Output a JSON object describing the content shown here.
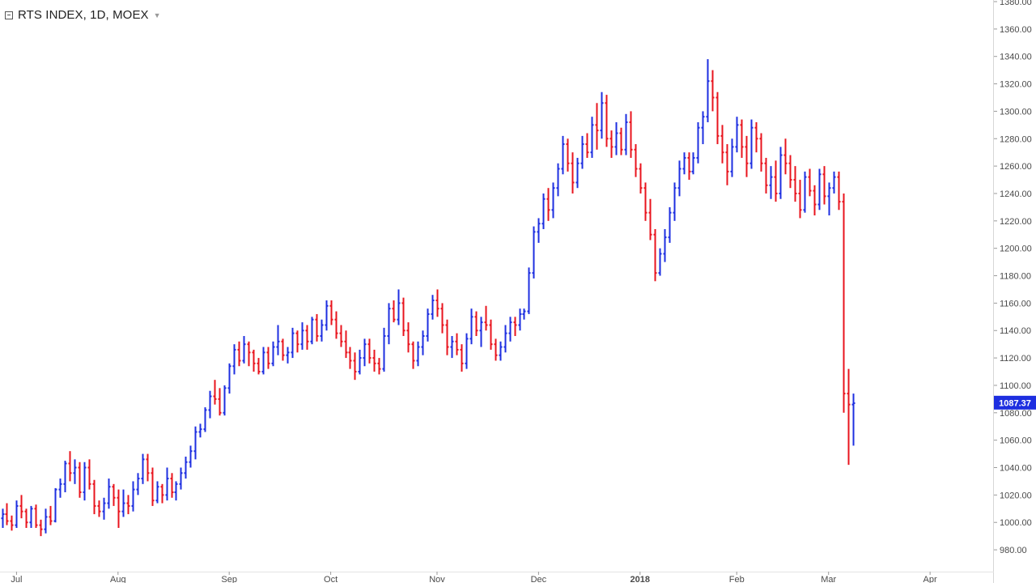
{
  "chart_data": {
    "type": "ohlc_bar",
    "title": "RTS INDEX, 1D, MOEX",
    "timeframe": "1D",
    "exchange": "MOEX",
    "last_price": "1087.37",
    "ylim": [
      970,
      1380
    ],
    "y_ticks": [
      "980.00",
      "1000.00",
      "1020.00",
      "1040.00",
      "1060.00",
      "1080.00",
      "1100.00",
      "1120.00",
      "1140.00",
      "1160.00",
      "1180.00",
      "1200.00",
      "1220.00",
      "1240.00",
      "1260.00",
      "1280.00",
      "1300.00",
      "1320.00",
      "1340.00",
      "1360.00",
      "1380.00"
    ],
    "x_ticks": [
      {
        "label": "Jul",
        "index": 3
      },
      {
        "label": "Aug",
        "index": 24
      },
      {
        "label": "Sep",
        "index": 47
      },
      {
        "label": "Oct",
        "index": 68
      },
      {
        "label": "Nov",
        "index": 90
      },
      {
        "label": "Dec",
        "index": 111
      },
      {
        "label": "2018",
        "index": 132
      },
      {
        "label": "Feb",
        "index": 152
      },
      {
        "label": "Mar",
        "index": 171
      },
      {
        "label": "Apr",
        "index": 192
      }
    ],
    "colors": {
      "up": "#1e2fe0",
      "down": "#e8141e",
      "axis": "#d6d6d6",
      "text": "#4a4a4a",
      "last_price_bg": "#1e2fe0"
    },
    "grid": false,
    "bars": [
      [
        1003,
        1010,
        996,
        1006
      ],
      [
        1006,
        1014,
        998,
        1001
      ],
      [
        1001,
        1005,
        994,
        998
      ],
      [
        998,
        1016,
        996,
        1012
      ],
      [
        1012,
        1020,
        1003,
        1008
      ],
      [
        1008,
        1010,
        996,
        1000
      ],
      [
        1000,
        1012,
        996,
        1010
      ],
      [
        1010,
        1013,
        996,
        998
      ],
      [
        998,
        1002,
        990,
        995
      ],
      [
        995,
        1010,
        992,
        1004
      ],
      [
        1004,
        1012,
        998,
        1001
      ],
      [
        1001,
        1025,
        1000,
        1024
      ],
      [
        1024,
        1032,
        1018,
        1028
      ],
      [
        1028,
        1045,
        1022,
        1043
      ],
      [
        1043,
        1052,
        1030,
        1036
      ],
      [
        1036,
        1046,
        1028,
        1040
      ],
      [
        1040,
        1044,
        1018,
        1022
      ],
      [
        1022,
        1044,
        1016,
        1040
      ],
      [
        1040,
        1046,
        1024,
        1028
      ],
      [
        1028,
        1031,
        1006,
        1012
      ],
      [
        1012,
        1016,
        1004,
        1008
      ],
      [
        1008,
        1018,
        1002,
        1014
      ],
      [
        1014,
        1032,
        1010,
        1026
      ],
      [
        1026,
        1028,
        1012,
        1018
      ],
      [
        1018,
        1024,
        996,
        1008
      ],
      [
        1008,
        1024,
        1004,
        1014
      ],
      [
        1014,
        1020,
        1006,
        1012
      ],
      [
        1012,
        1030,
        1008,
        1024
      ],
      [
        1024,
        1036,
        1020,
        1032
      ],
      [
        1032,
        1050,
        1028,
        1046
      ],
      [
        1046,
        1050,
        1030,
        1036
      ],
      [
        1036,
        1040,
        1012,
        1016
      ],
      [
        1016,
        1030,
        1014,
        1026
      ],
      [
        1026,
        1028,
        1014,
        1020
      ],
      [
        1020,
        1040,
        1016,
        1032
      ],
      [
        1032,
        1036,
        1018,
        1022
      ],
      [
        1022,
        1030,
        1016,
        1028
      ],
      [
        1028,
        1040,
        1024,
        1036
      ],
      [
        1036,
        1048,
        1032,
        1044
      ],
      [
        1044,
        1056,
        1040,
        1052
      ],
      [
        1052,
        1070,
        1046,
        1066
      ],
      [
        1066,
        1072,
        1062,
        1068
      ],
      [
        1068,
        1084,
        1066,
        1082
      ],
      [
        1082,
        1096,
        1076,
        1092
      ],
      [
        1092,
        1104,
        1086,
        1090
      ],
      [
        1090,
        1098,
        1078,
        1080
      ],
      [
        1080,
        1100,
        1078,
        1098
      ],
      [
        1098,
        1116,
        1094,
        1114
      ],
      [
        1114,
        1130,
        1108,
        1126
      ],
      [
        1126,
        1132,
        1114,
        1118
      ],
      [
        1118,
        1136,
        1116,
        1130
      ],
      [
        1130,
        1132,
        1114,
        1124
      ],
      [
        1124,
        1126,
        1110,
        1116
      ],
      [
        1116,
        1120,
        1108,
        1110
      ],
      [
        1110,
        1128,
        1108,
        1124
      ],
      [
        1124,
        1128,
        1112,
        1116
      ],
      [
        1116,
        1132,
        1114,
        1128
      ],
      [
        1128,
        1144,
        1122,
        1132
      ],
      [
        1132,
        1134,
        1118,
        1122
      ],
      [
        1122,
        1128,
        1116,
        1124
      ],
      [
        1124,
        1142,
        1120,
        1138
      ],
      [
        1138,
        1140,
        1124,
        1130
      ],
      [
        1130,
        1146,
        1126,
        1140
      ],
      [
        1140,
        1144,
        1126,
        1132
      ],
      [
        1132,
        1150,
        1130,
        1148
      ],
      [
        1148,
        1152,
        1132,
        1136
      ],
      [
        1136,
        1148,
        1132,
        1144
      ],
      [
        1144,
        1162,
        1140,
        1158
      ],
      [
        1158,
        1162,
        1144,
        1148
      ],
      [
        1148,
        1154,
        1134,
        1138
      ],
      [
        1138,
        1144,
        1128,
        1132
      ],
      [
        1132,
        1140,
        1120,
        1124
      ],
      [
        1124,
        1128,
        1112,
        1118
      ],
      [
        1118,
        1124,
        1104,
        1110
      ],
      [
        1110,
        1126,
        1108,
        1120
      ],
      [
        1120,
        1134,
        1114,
        1130
      ],
      [
        1130,
        1134,
        1116,
        1120
      ],
      [
        1120,
        1126,
        1110,
        1116
      ],
      [
        1116,
        1120,
        1108,
        1112
      ],
      [
        1112,
        1142,
        1110,
        1136
      ],
      [
        1136,
        1160,
        1130,
        1156
      ],
      [
        1156,
        1162,
        1146,
        1148
      ],
      [
        1148,
        1170,
        1144,
        1160
      ],
      [
        1160,
        1164,
        1136,
        1140
      ],
      [
        1140,
        1146,
        1124,
        1130
      ],
      [
        1130,
        1132,
        1112,
        1118
      ],
      [
        1118,
        1132,
        1114,
        1128
      ],
      [
        1128,
        1140,
        1122,
        1136
      ],
      [
        1136,
        1156,
        1132,
        1152
      ],
      [
        1152,
        1166,
        1148,
        1162
      ],
      [
        1162,
        1170,
        1150,
        1156
      ],
      [
        1156,
        1160,
        1138,
        1144
      ],
      [
        1144,
        1148,
        1122,
        1128
      ],
      [
        1128,
        1136,
        1120,
        1132
      ],
      [
        1132,
        1138,
        1122,
        1126
      ],
      [
        1126,
        1130,
        1110,
        1116
      ],
      [
        1116,
        1138,
        1112,
        1134
      ],
      [
        1134,
        1156,
        1130,
        1150
      ],
      [
        1150,
        1154,
        1136,
        1140
      ],
      [
        1140,
        1150,
        1128,
        1146
      ],
      [
        1146,
        1158,
        1140,
        1144
      ],
      [
        1144,
        1148,
        1126,
        1130
      ],
      [
        1130,
        1134,
        1118,
        1122
      ],
      [
        1122,
        1132,
        1118,
        1128
      ],
      [
        1128,
        1144,
        1124,
        1138
      ],
      [
        1138,
        1150,
        1132,
        1146
      ],
      [
        1146,
        1150,
        1136,
        1144
      ],
      [
        1144,
        1156,
        1140,
        1152
      ],
      [
        1152,
        1156,
        1148,
        1154
      ],
      [
        1154,
        1186,
        1152,
        1182
      ],
      [
        1182,
        1216,
        1178,
        1212
      ],
      [
        1212,
        1222,
        1204,
        1218
      ],
      [
        1218,
        1240,
        1214,
        1236
      ],
      [
        1236,
        1244,
        1220,
        1228
      ],
      [
        1228,
        1248,
        1222,
        1244
      ],
      [
        1244,
        1262,
        1238,
        1258
      ],
      [
        1258,
        1282,
        1254,
        1276
      ],
      [
        1276,
        1280,
        1256,
        1262
      ],
      [
        1262,
        1270,
        1240,
        1248
      ],
      [
        1248,
        1266,
        1244,
        1262
      ],
      [
        1262,
        1282,
        1258,
        1276
      ],
      [
        1276,
        1284,
        1266,
        1270
      ],
      [
        1270,
        1296,
        1266,
        1290
      ],
      [
        1290,
        1306,
        1272,
        1286
      ],
      [
        1286,
        1314,
        1280,
        1306
      ],
      [
        1306,
        1312,
        1274,
        1280
      ],
      [
        1280,
        1286,
        1266,
        1274
      ],
      [
        1274,
        1292,
        1268,
        1284
      ],
      [
        1284,
        1288,
        1268,
        1272
      ],
      [
        1272,
        1298,
        1268,
        1292
      ],
      [
        1292,
        1300,
        1266,
        1272
      ],
      [
        1272,
        1276,
        1252,
        1258
      ],
      [
        1258,
        1262,
        1240,
        1244
      ],
      [
        1244,
        1248,
        1220,
        1226
      ],
      [
        1226,
        1236,
        1206,
        1210
      ],
      [
        1210,
        1214,
        1176,
        1182
      ],
      [
        1182,
        1200,
        1180,
        1196
      ],
      [
        1196,
        1214,
        1190,
        1208
      ],
      [
        1208,
        1230,
        1204,
        1226
      ],
      [
        1226,
        1248,
        1220,
        1244
      ],
      [
        1244,
        1264,
        1238,
        1258
      ],
      [
        1258,
        1270,
        1254,
        1266
      ],
      [
        1266,
        1270,
        1250,
        1256
      ],
      [
        1256,
        1270,
        1254,
        1266
      ],
      [
        1266,
        1292,
        1262,
        1288
      ],
      [
        1288,
        1300,
        1276,
        1296
      ],
      [
        1296,
        1338,
        1292,
        1322
      ],
      [
        1322,
        1330,
        1300,
        1310
      ],
      [
        1310,
        1314,
        1276,
        1282
      ],
      [
        1282,
        1290,
        1262,
        1270
      ],
      [
        1270,
        1276,
        1246,
        1256
      ],
      [
        1256,
        1280,
        1252,
        1274
      ],
      [
        1274,
        1296,
        1270,
        1290
      ],
      [
        1290,
        1294,
        1266,
        1274
      ],
      [
        1274,
        1282,
        1252,
        1262
      ],
      [
        1262,
        1294,
        1258,
        1288
      ],
      [
        1288,
        1292,
        1270,
        1280
      ],
      [
        1280,
        1284,
        1256,
        1262
      ],
      [
        1262,
        1266,
        1240,
        1246
      ],
      [
        1246,
        1260,
        1236,
        1252
      ],
      [
        1252,
        1264,
        1234,
        1240
      ],
      [
        1240,
        1274,
        1236,
        1268
      ],
      [
        1268,
        1280,
        1254,
        1262
      ],
      [
        1262,
        1268,
        1244,
        1250
      ],
      [
        1250,
        1260,
        1234,
        1240
      ],
      [
        1240,
        1250,
        1222,
        1228
      ],
      [
        1228,
        1256,
        1226,
        1252
      ],
      [
        1252,
        1258,
        1238,
        1242
      ],
      [
        1242,
        1246,
        1224,
        1232
      ],
      [
        1232,
        1258,
        1228,
        1254
      ],
      [
        1254,
        1260,
        1232,
        1238
      ],
      [
        1238,
        1248,
        1224,
        1244
      ],
      [
        1244,
        1256,
        1240,
        1252
      ],
      [
        1252,
        1256,
        1228,
        1234
      ],
      [
        1234,
        1240,
        1080,
        1094
      ],
      [
        1094,
        1112,
        1042,
        1086
      ],
      [
        1086,
        1094,
        1056,
        1087
      ]
    ]
  }
}
